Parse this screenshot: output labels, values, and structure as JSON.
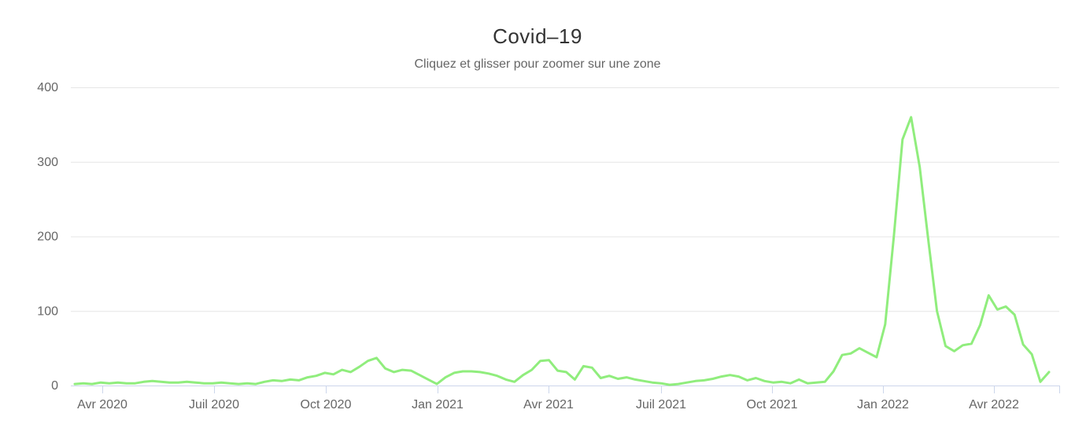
{
  "chart": {
    "title": "Covid–19",
    "subtitle": "Cliquez et glisser pour zoomer sur une zone",
    "colors": {
      "series": "#90ed7d",
      "axis_line": "#ccd6eb",
      "gridline": "#e6e6e6",
      "label": "#666666",
      "title_text": "#333333",
      "background": "#ffffff"
    }
  },
  "chart_data": {
    "type": "line",
    "title": "Covid–19",
    "subtitle": "Cliquez et glisser pour zoomer sur une zone",
    "legend": "none",
    "grid": "horizontal",
    "x_axis": {
      "kind": "datetime",
      "tick_labels": [
        "Avr 2020",
        "Juil 2020",
        "Oct 2020",
        "Jan 2021",
        "Avr 2021",
        "Juil 2021",
        "Oct 2021",
        "Jan 2022",
        "Avr 2022"
      ]
    },
    "y_axis": {
      "tick_labels": [
        0,
        100,
        200,
        300,
        400
      ],
      "range": [
        0,
        400
      ]
    },
    "series": [
      {
        "color": "#90ed7d",
        "cadence": "weekly",
        "values": [
          2,
          3,
          2,
          4,
          3,
          4,
          3,
          3,
          5,
          6,
          5,
          4,
          4,
          5,
          4,
          3,
          3,
          4,
          3,
          2,
          3,
          2,
          5,
          7,
          6,
          8,
          7,
          11,
          13,
          17,
          15,
          21,
          18,
          25,
          33,
          37,
          23,
          18,
          21,
          20,
          14,
          8,
          2,
          11,
          17,
          19,
          19,
          18,
          16,
          13,
          8,
          5,
          14,
          21,
          33,
          34,
          20,
          18,
          8,
          26,
          24,
          10,
          13,
          9,
          11,
          8,
          6,
          4,
          3,
          1,
          2,
          4,
          6,
          7,
          9,
          12,
          14,
          12,
          7,
          10,
          6,
          4,
          5,
          3,
          8,
          3,
          4,
          5,
          19,
          41,
          43,
          50,
          44,
          38,
          82,
          200,
          330,
          360,
          293,
          195,
          100,
          53,
          46,
          54,
          56,
          81,
          121,
          102,
          106,
          95,
          55,
          42,
          5,
          18
        ]
      }
    ]
  }
}
